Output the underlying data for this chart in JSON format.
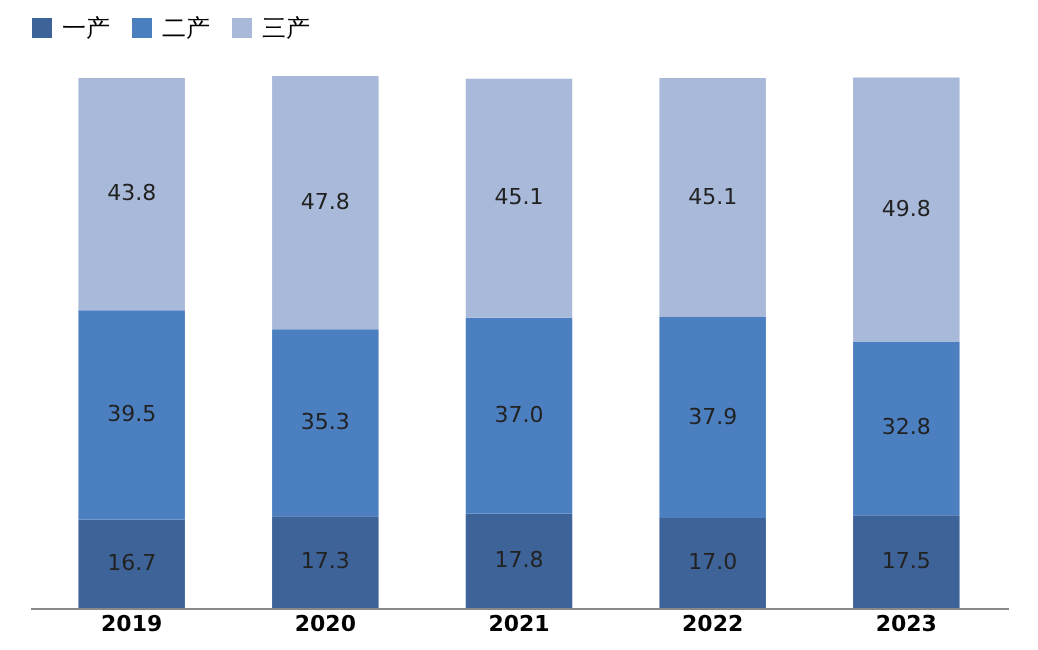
{
  "chart_data": {
    "type": "bar",
    "stacked": true,
    "categories": [
      "2019",
      "2020",
      "2021",
      "2022",
      "2023"
    ],
    "series": [
      {
        "name": "一产",
        "color": "#3d6399",
        "values": [
          16.7,
          17.3,
          17.8,
          17.0,
          17.5
        ],
        "value_labels": [
          "16.7",
          "17.3",
          "17.8",
          "17.0",
          "17.5"
        ]
      },
      {
        "name": "二产",
        "color": "#4b7fc0",
        "values": [
          39.5,
          35.3,
          37.0,
          37.9,
          32.8
        ],
        "value_labels": [
          "39.5",
          "35.3",
          "37.0",
          "37.9",
          "32.8"
        ]
      },
      {
        "name": "三产",
        "color": "#a9b9d9",
        "values": [
          43.8,
          47.8,
          45.1,
          45.1,
          49.8
        ],
        "value_labels": [
          "43.8",
          "47.8",
          "45.1",
          "45.1",
          "49.8"
        ]
      }
    ],
    "legend": "top",
    "tick_labels": "x",
    "grid": false
  }
}
